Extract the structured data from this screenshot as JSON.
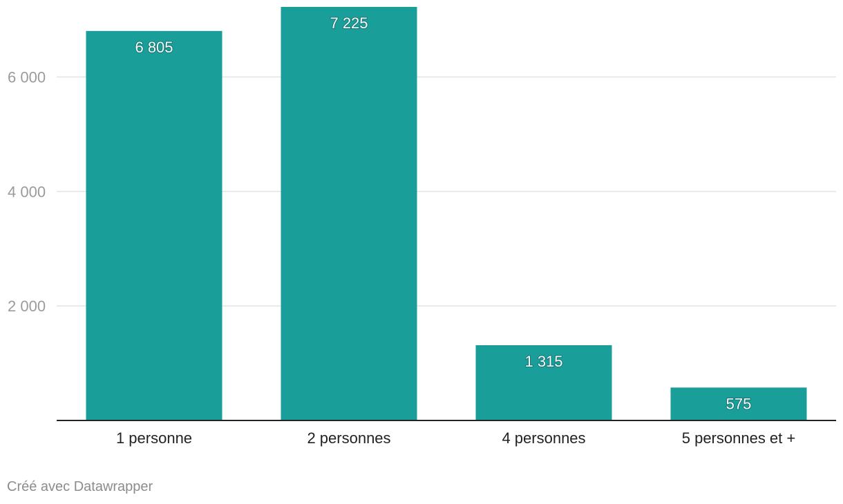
{
  "chart_data": {
    "type": "bar",
    "categories": [
      "1 personne",
      "2 personnes",
      "4 personnes",
      "5 personnes et +"
    ],
    "values": [
      6805,
      7225,
      1315,
      575
    ],
    "value_labels": [
      "6 805",
      "7 225",
      "1 315",
      "575"
    ],
    "title": "",
    "xlabel": "",
    "ylabel": "",
    "ylim": [
      0,
      7225
    ],
    "yticks": [
      2000,
      4000,
      6000
    ],
    "ytick_labels": [
      "2 000",
      "4 000",
      "6 000"
    ],
    "grid": true,
    "bar_color": "#1a9e9a",
    "axis_color": "#222222"
  },
  "footer": {
    "credit": "Créé avec Datawrapper"
  }
}
